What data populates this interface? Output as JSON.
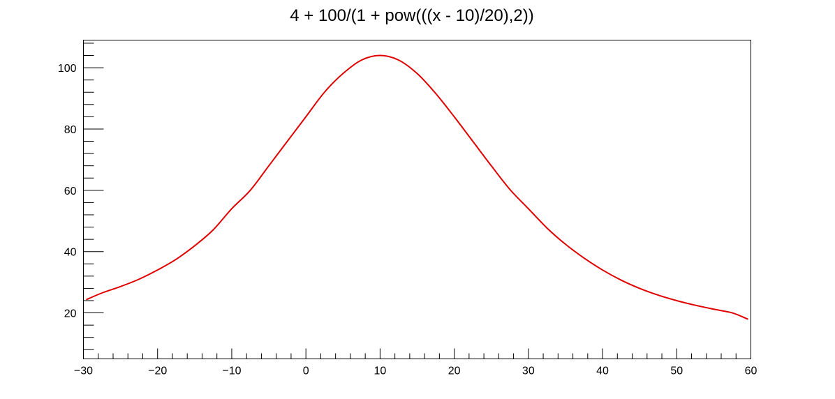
{
  "chart_data": {
    "type": "line",
    "title": "4 + 100/(1 + pow(((x - 10)/20),2))",
    "xlabel": "",
    "ylabel": "",
    "xlim": [
      -30,
      60
    ],
    "ylim": [
      4.99,
      109.01
    ],
    "x_ticks": [
      -30,
      -20,
      -10,
      0,
      10,
      20,
      30,
      40,
      50,
      60
    ],
    "x_tick_labels": [
      "−30",
      "−20",
      "−10",
      "0",
      "10",
      "20",
      "30",
      "40",
      "50",
      "60"
    ],
    "y_ticks": [
      20,
      40,
      60,
      80,
      100
    ],
    "y_tick_labels": [
      "20",
      "40",
      "60",
      "80",
      "100"
    ],
    "grid": false,
    "legend": "none",
    "line_color": "#e00000",
    "series": [
      {
        "x": [
          -29.55,
          -27.5,
          -25,
          -22.5,
          -20,
          -17.5,
          -15,
          -12.5,
          -10,
          -7.5,
          -5,
          -2.5,
          0,
          2.5,
          5,
          7.5,
          10,
          12.5,
          15,
          17.5,
          20,
          22.5,
          25,
          27.5,
          30,
          32.5,
          35,
          37.5,
          40,
          42.5,
          45,
          47.5,
          50,
          52.5,
          55,
          57.5,
          59.55
        ],
        "y": [
          24.4,
          26.5,
          28.6,
          31.0,
          34.0,
          37.5,
          41.9,
          47.1,
          54.0,
          60.0,
          68.0,
          76.0,
          84.0,
          92.0,
          98.1,
          102.5,
          104.0,
          102.5,
          98.1,
          91.6,
          84.0,
          76.0,
          68.0,
          60.3,
          54.0,
          47.7,
          42.4,
          37.9,
          34.0,
          30.7,
          28.0,
          25.8,
          24.0,
          22.5,
          21.2,
          20.0,
          18.0
        ]
      }
    ]
  }
}
